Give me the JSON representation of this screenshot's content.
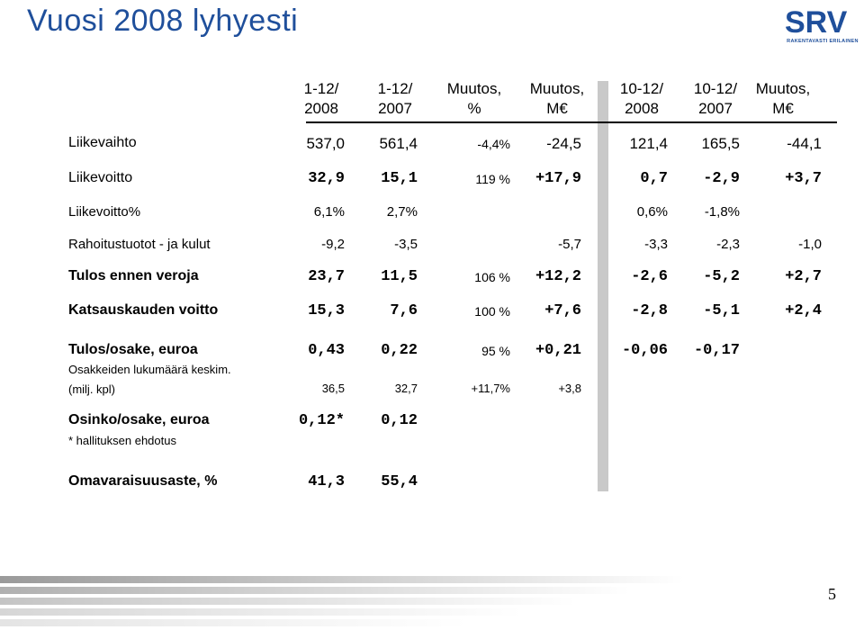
{
  "title": "Vuosi 2008 lyhyesti",
  "logo": {
    "text": "SRV",
    "subtitle": "RAKENTAVASTI ERILAINEN"
  },
  "headers": [
    [
      "1-12/",
      "2008"
    ],
    [
      "1-12/",
      "2007"
    ],
    [
      "Muutos,",
      "%"
    ],
    [
      "Muutos,",
      "M€"
    ],
    [
      "10-12/",
      "2008"
    ],
    [
      "10-12/",
      "2007"
    ],
    [
      "Muutos,",
      "M€"
    ]
  ],
  "rows": [
    {
      "label": "Liikevaihto",
      "v": [
        "537,0",
        "561,4",
        "-4,4%",
        "-24,5",
        "121,4",
        "165,5",
        "-44,1"
      ]
    },
    {
      "label": "Liikevoitto",
      "v": [
        "32,9",
        "15,1",
        "119 %",
        "+17,9",
        "0,7",
        "-2,9",
        "+3,7"
      ]
    },
    {
      "label": "Liikevoitto%",
      "v": [
        "6,1%",
        "2,7%",
        "",
        "",
        "0,6%",
        "-1,8%",
        ""
      ]
    },
    {
      "label": "Rahoitustuotot - ja kulut",
      "v": [
        "-9,2",
        "-3,5",
        "",
        "-5,7",
        "-3,3",
        "-2,3",
        "-1,0"
      ]
    },
    {
      "label": "Tulos ennen veroja",
      "v": [
        "23,7",
        "11,5",
        "106 %",
        "+12,2",
        "-2,6",
        "-5,2",
        "+2,7"
      ]
    },
    {
      "label": "Katsauskauden voitto",
      "v": [
        "15,3",
        "7,6",
        "100 %",
        "+7,6",
        "-2,8",
        "-5,1",
        "+2,4"
      ]
    },
    {
      "label": "Tulos/osake, euroa",
      "v": [
        "0,43",
        "0,22",
        "95 %",
        "+0,21",
        "-0,06",
        "-0,17",
        ""
      ]
    },
    {
      "label": "Osakkeiden lukumäärä keskim.",
      "label2": "(milj. kpl)",
      "v": [
        "36,5",
        "32,7",
        "+11,7%",
        "+3,8",
        "",
        "",
        ""
      ]
    },
    {
      "label": "Osinko/osake, euroa",
      "note": "* hallituksen ehdotus",
      "v": [
        "0,12*",
        "0,12",
        "",
        "",
        "",
        "",
        ""
      ]
    },
    {
      "label": "Omavaraisuusaste, %",
      "v": [
        "41,3",
        "55,4",
        "",
        "",
        "",
        "",
        ""
      ]
    }
  ],
  "page_number": "5",
  "colors": {
    "title": "#1f4f9b",
    "divider": "#c9c9c9",
    "logo": "#1f4f9b"
  }
}
